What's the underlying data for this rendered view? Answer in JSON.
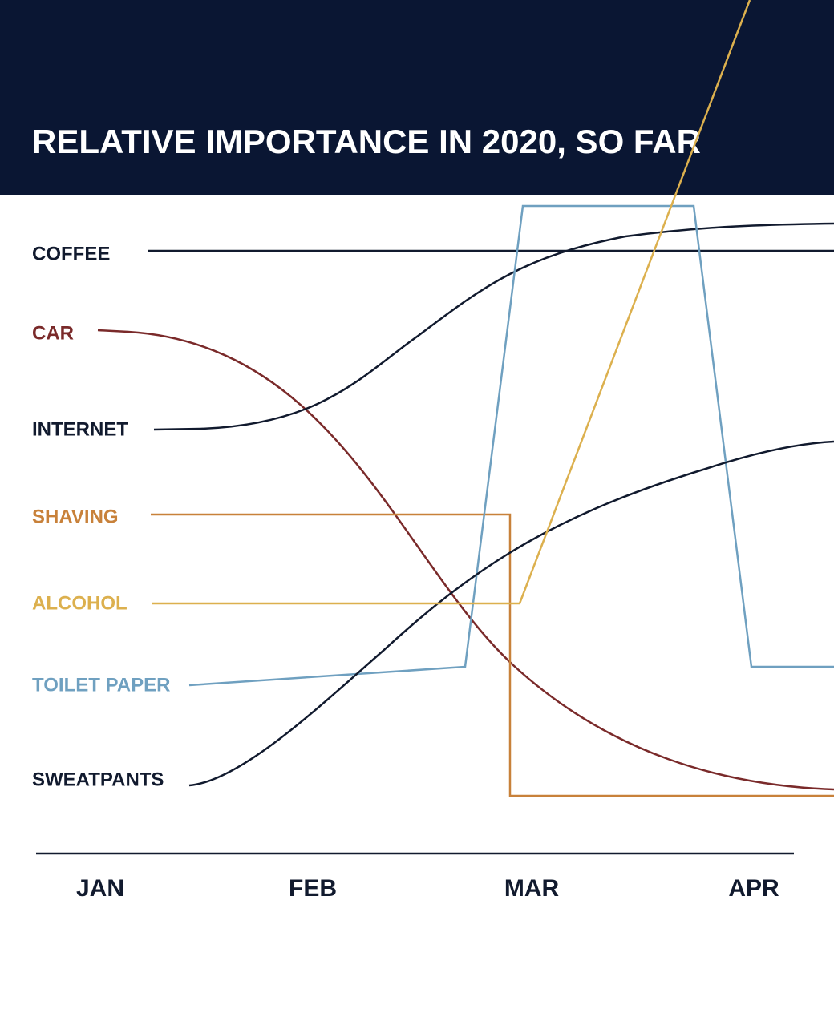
{
  "chart_data": {
    "type": "line",
    "title": "RELATIVE IMPORTANCE IN 2020, SO FAR",
    "categories": [
      "JAN",
      "FEB",
      "MAR",
      "APR"
    ],
    "series": [
      {
        "name": "COFFEE",
        "color": "#111a2e"
      },
      {
        "name": "CAR",
        "color": "#7a2a2a"
      },
      {
        "name": "INTERNET",
        "color": "#111a2e"
      },
      {
        "name": "SHAVING",
        "color": "#c8813a"
      },
      {
        "name": "ALCOHOL",
        "color": "#dcb04e"
      },
      {
        "name": "TOILET PAPER",
        "color": "#6fa0c0"
      },
      {
        "name": "SWEATPANTS",
        "color": "#111a2e"
      }
    ]
  }
}
